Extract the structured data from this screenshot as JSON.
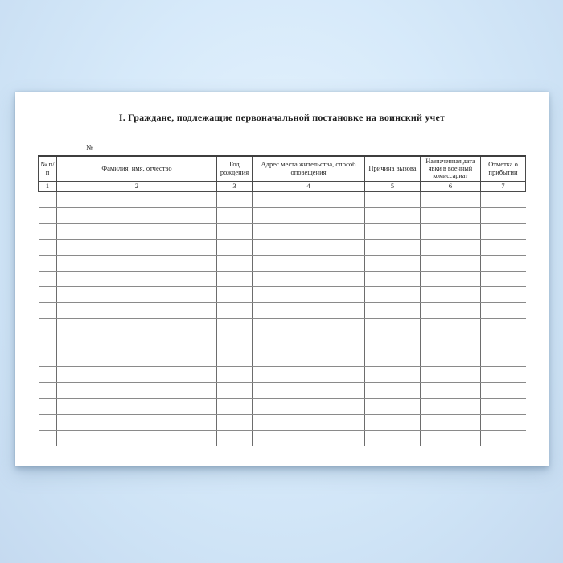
{
  "document": {
    "title": "I. Граждане, подлежащие первоначальной постановке на воинский учет",
    "number_line": "____________ № ____________"
  },
  "table": {
    "headers": [
      {
        "label": "№ п/п",
        "num": "1"
      },
      {
        "label": "Фамилия, имя, отчество",
        "num": "2"
      },
      {
        "label": "Год рождения",
        "num": "3"
      },
      {
        "label": "Адрес места жительства, способ оповещения",
        "num": "4"
      },
      {
        "label": "Причина вызова",
        "num": "5"
      },
      {
        "label": "Назначенная дата явки в военный комиссариат",
        "num": "6"
      },
      {
        "label": "Отметка о прибытии",
        "num": "7"
      }
    ],
    "blank_row_count": 16
  },
  "colors": {
    "background_center": "#e6f3fd",
    "background_edge": "#c5daf0",
    "page_background": "#ffffff",
    "header_border": "#4a4a4a",
    "row_line": "#8a8a8a",
    "column_line": "#6d6d6d",
    "text": "#1f1f1f"
  }
}
